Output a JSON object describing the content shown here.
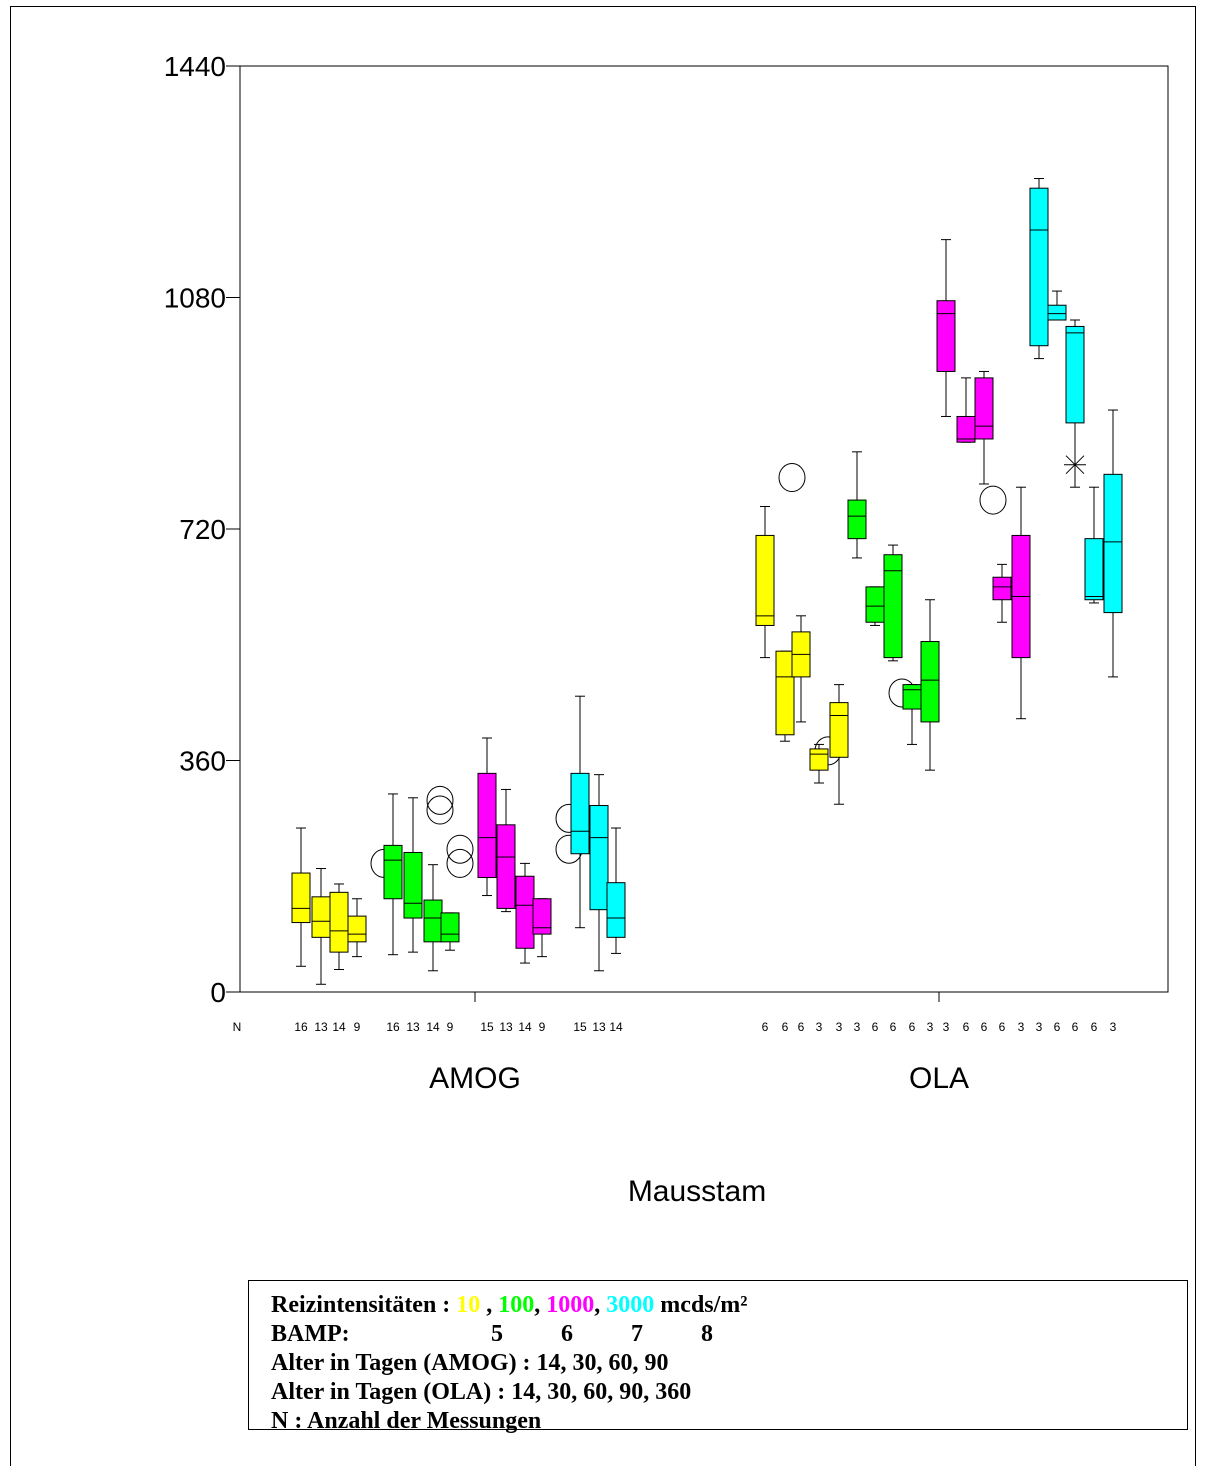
{
  "chart_data": {
    "type": "boxplot",
    "ylim": [
      0,
      1440
    ],
    "y_ticks": [
      0,
      360,
      720,
      1080,
      1440
    ],
    "y_tick_labels": [
      "0",
      "360",
      "720",
      "1080",
      "1440"
    ],
    "xlabel": "Mausstam",
    "ylabel": "",
    "title": "",
    "n_label": "N",
    "groups": [
      "AMOG",
      "OLA"
    ],
    "colors": {
      "10": "#ffff00",
      "100": "#00ff00",
      "1000": "#ff00ff",
      "3000": "#00ffff"
    },
    "boxes": [
      {
        "group": "AMOG",
        "intensity": "10",
        "n": "16",
        "whisker_low": 40,
        "q1": 108,
        "median": 130,
        "q3": 185,
        "whisker_high": 255
      },
      {
        "group": "AMOG",
        "intensity": "10",
        "n": "13",
        "whisker_low": 12,
        "q1": 85,
        "median": 110,
        "q3": 148,
        "whisker_high": 192
      },
      {
        "group": "AMOG",
        "intensity": "10",
        "n": "14",
        "whisker_low": 35,
        "q1": 62,
        "median": 95,
        "q3": 155,
        "whisker_high": 168
      },
      {
        "group": "AMOG",
        "intensity": "10",
        "n": "9",
        "whisker_low": 55,
        "q1": 78,
        "median": 90,
        "q3": 118,
        "whisker_high": 145,
        "outliers": [
          {
            "value": 200,
            "marker": "circle"
          }
        ]
      },
      {
        "group": "AMOG",
        "intensity": "100",
        "n": "16",
        "whisker_low": 58,
        "q1": 145,
        "median": 205,
        "q3": 228,
        "whisker_high": 308
      },
      {
        "group": "AMOG",
        "intensity": "100",
        "n": "13",
        "whisker_low": 62,
        "q1": 115,
        "median": 138,
        "q3": 217,
        "whisker_high": 302,
        "outliers": [
          {
            "value": 283,
            "marker": "circle"
          },
          {
            "value": 298,
            "marker": "circle"
          }
        ]
      },
      {
        "group": "AMOG",
        "intensity": "100",
        "n": "14",
        "whisker_low": 33,
        "q1": 78,
        "median": 115,
        "q3": 143,
        "whisker_high": 198,
        "outliers": [
          {
            "value": 200,
            "marker": "circle"
          },
          {
            "value": 222,
            "marker": "circle"
          }
        ]
      },
      {
        "group": "AMOG",
        "intensity": "100",
        "n": "9",
        "whisker_low": 65,
        "q1": 78,
        "median": 90,
        "q3": 123,
        "whisker_high": 123
      },
      {
        "group": "AMOG",
        "intensity": "1000",
        "n": "15",
        "whisker_low": 150,
        "q1": 178,
        "median": 240,
        "q3": 340,
        "whisker_high": 395
      },
      {
        "group": "AMOG",
        "intensity": "1000",
        "n": "13",
        "whisker_low": 125,
        "q1": 130,
        "median": 210,
        "q3": 260,
        "whisker_high": 315
      },
      {
        "group": "AMOG",
        "intensity": "1000",
        "n": "14",
        "whisker_low": 45,
        "q1": 68,
        "median": 135,
        "q3": 180,
        "whisker_high": 200
      },
      {
        "group": "AMOG",
        "intensity": "1000",
        "n": "9",
        "whisker_low": 55,
        "q1": 90,
        "median": 100,
        "q3": 145,
        "whisker_high": 145,
        "outliers": [
          {
            "value": 222,
            "marker": "circle"
          },
          {
            "value": 270,
            "marker": "circle"
          }
        ]
      },
      {
        "group": "AMOG",
        "intensity": "3000",
        "n": "15",
        "whisker_low": 100,
        "q1": 215,
        "median": 250,
        "q3": 340,
        "whisker_high": 460
      },
      {
        "group": "AMOG",
        "intensity": "3000",
        "n": "13",
        "whisker_low": 33,
        "q1": 128,
        "median": 240,
        "q3": 290,
        "whisker_high": 338
      },
      {
        "group": "AMOG",
        "intensity": "3000",
        "n": "14",
        "whisker_low": 60,
        "q1": 85,
        "median": 115,
        "q3": 170,
        "whisker_high": 255
      },
      {
        "group": "OLA",
        "intensity": "10",
        "n": "6",
        "whisker_low": 520,
        "q1": 570,
        "median": 585,
        "q3": 710,
        "whisker_high": 755,
        "outliers": [
          {
            "value": 800,
            "marker": "circle"
          }
        ]
      },
      {
        "group": "OLA",
        "intensity": "10",
        "n": "6",
        "whisker_low": 390,
        "q1": 400,
        "median": 490,
        "q3": 530,
        "whisker_high": 530
      },
      {
        "group": "OLA",
        "intensity": "10",
        "n": "6",
        "whisker_low": 420,
        "q1": 490,
        "median": 525,
        "q3": 560,
        "whisker_high": 585,
        "outliers": [
          {
            "value": 375,
            "marker": "circle"
          }
        ]
      },
      {
        "group": "OLA",
        "intensity": "10",
        "n": "3",
        "whisker_low": 325,
        "q1": 345,
        "median": 370,
        "q3": 378,
        "whisker_high": 385
      },
      {
        "group": "OLA",
        "intensity": "10",
        "n": "3",
        "whisker_low": 292,
        "q1": 365,
        "median": 430,
        "q3": 450,
        "whisker_high": 478
      },
      {
        "group": "OLA",
        "intensity": "100",
        "n": "3",
        "whisker_low": 675,
        "q1": 705,
        "median": 740,
        "q3": 765,
        "whisker_high": 840
      },
      {
        "group": "OLA",
        "intensity": "100",
        "n": "6",
        "whisker_low": 570,
        "q1": 575,
        "median": 600,
        "q3": 630,
        "whisker_high": 630,
        "outliers": [
          {
            "value": 465,
            "marker": "circle"
          }
        ]
      },
      {
        "group": "OLA",
        "intensity": "100",
        "n": "6",
        "whisker_low": 515,
        "q1": 520,
        "median": 655,
        "q3": 680,
        "whisker_high": 695
      },
      {
        "group": "OLA",
        "intensity": "100",
        "n": "6",
        "whisker_low": 385,
        "q1": 440,
        "median": 470,
        "q3": 478,
        "whisker_high": 478
      },
      {
        "group": "OLA",
        "intensity": "100",
        "n": "3",
        "whisker_low": 345,
        "q1": 420,
        "median": 485,
        "q3": 545,
        "whisker_high": 610
      },
      {
        "group": "OLA",
        "intensity": "1000",
        "n": "3",
        "whisker_low": 895,
        "q1": 965,
        "median": 1055,
        "q3": 1075,
        "whisker_high": 1170
      },
      {
        "group": "OLA",
        "intensity": "1000",
        "n": "6",
        "whisker_low": 855,
        "q1": 855,
        "median": 860,
        "q3": 895,
        "whisker_high": 955,
        "outliers": [
          {
            "value": 765,
            "marker": "circle"
          }
        ]
      },
      {
        "group": "OLA",
        "intensity": "1000",
        "n": "6",
        "whisker_low": 790,
        "q1": 860,
        "median": 880,
        "q3": 955,
        "whisker_high": 965
      },
      {
        "group": "OLA",
        "intensity": "1000",
        "n": "6",
        "whisker_low": 575,
        "q1": 610,
        "median": 630,
        "q3": 645,
        "whisker_high": 665
      },
      {
        "group": "OLA",
        "intensity": "1000",
        "n": "3",
        "whisker_low": 425,
        "q1": 520,
        "median": 615,
        "q3": 710,
        "whisker_high": 785
      },
      {
        "group": "OLA",
        "intensity": "3000",
        "n": "3",
        "whisker_low": 985,
        "q1": 1005,
        "median": 1185,
        "q3": 1250,
        "whisker_high": 1265
      },
      {
        "group": "OLA",
        "intensity": "3000",
        "n": "6",
        "whisker_low": 1045,
        "q1": 1045,
        "median": 1055,
        "q3": 1068,
        "whisker_high": 1090
      },
      {
        "group": "OLA",
        "intensity": "3000",
        "n": "6",
        "whisker_low": 785,
        "q1": 885,
        "median": 1025,
        "q3": 1035,
        "whisker_high": 1045,
        "outliers": [
          {
            "value": 820,
            "marker": "star"
          }
        ]
      },
      {
        "group": "OLA",
        "intensity": "3000",
        "n": "6",
        "whisker_low": 605,
        "q1": 610,
        "median": 615,
        "q3": 705,
        "whisker_high": 785
      },
      {
        "group": "OLA",
        "intensity": "3000",
        "n": "3",
        "whisker_low": 490,
        "q1": 590,
        "median": 700,
        "q3": 805,
        "whisker_high": 905
      }
    ]
  },
  "legend": {
    "line1_prefix": "Reizintensitäten : ",
    "intensities": [
      "10",
      "100",
      "1000",
      "3000"
    ],
    "separators": [
      " , ",
      ", ",
      ", "
    ],
    "unit": " mcds/m²",
    "bamp_label": "BAMP:",
    "bamp_values": [
      "5",
      "6",
      "7",
      "8"
    ],
    "line3": "Alter in Tagen (AMOG) : 14, 30, 60, 90",
    "line4": "Alter in Tagen (OLA) : 14, 30, 60, 90, 360",
    "line5": "N : Anzahl der Messungen"
  }
}
